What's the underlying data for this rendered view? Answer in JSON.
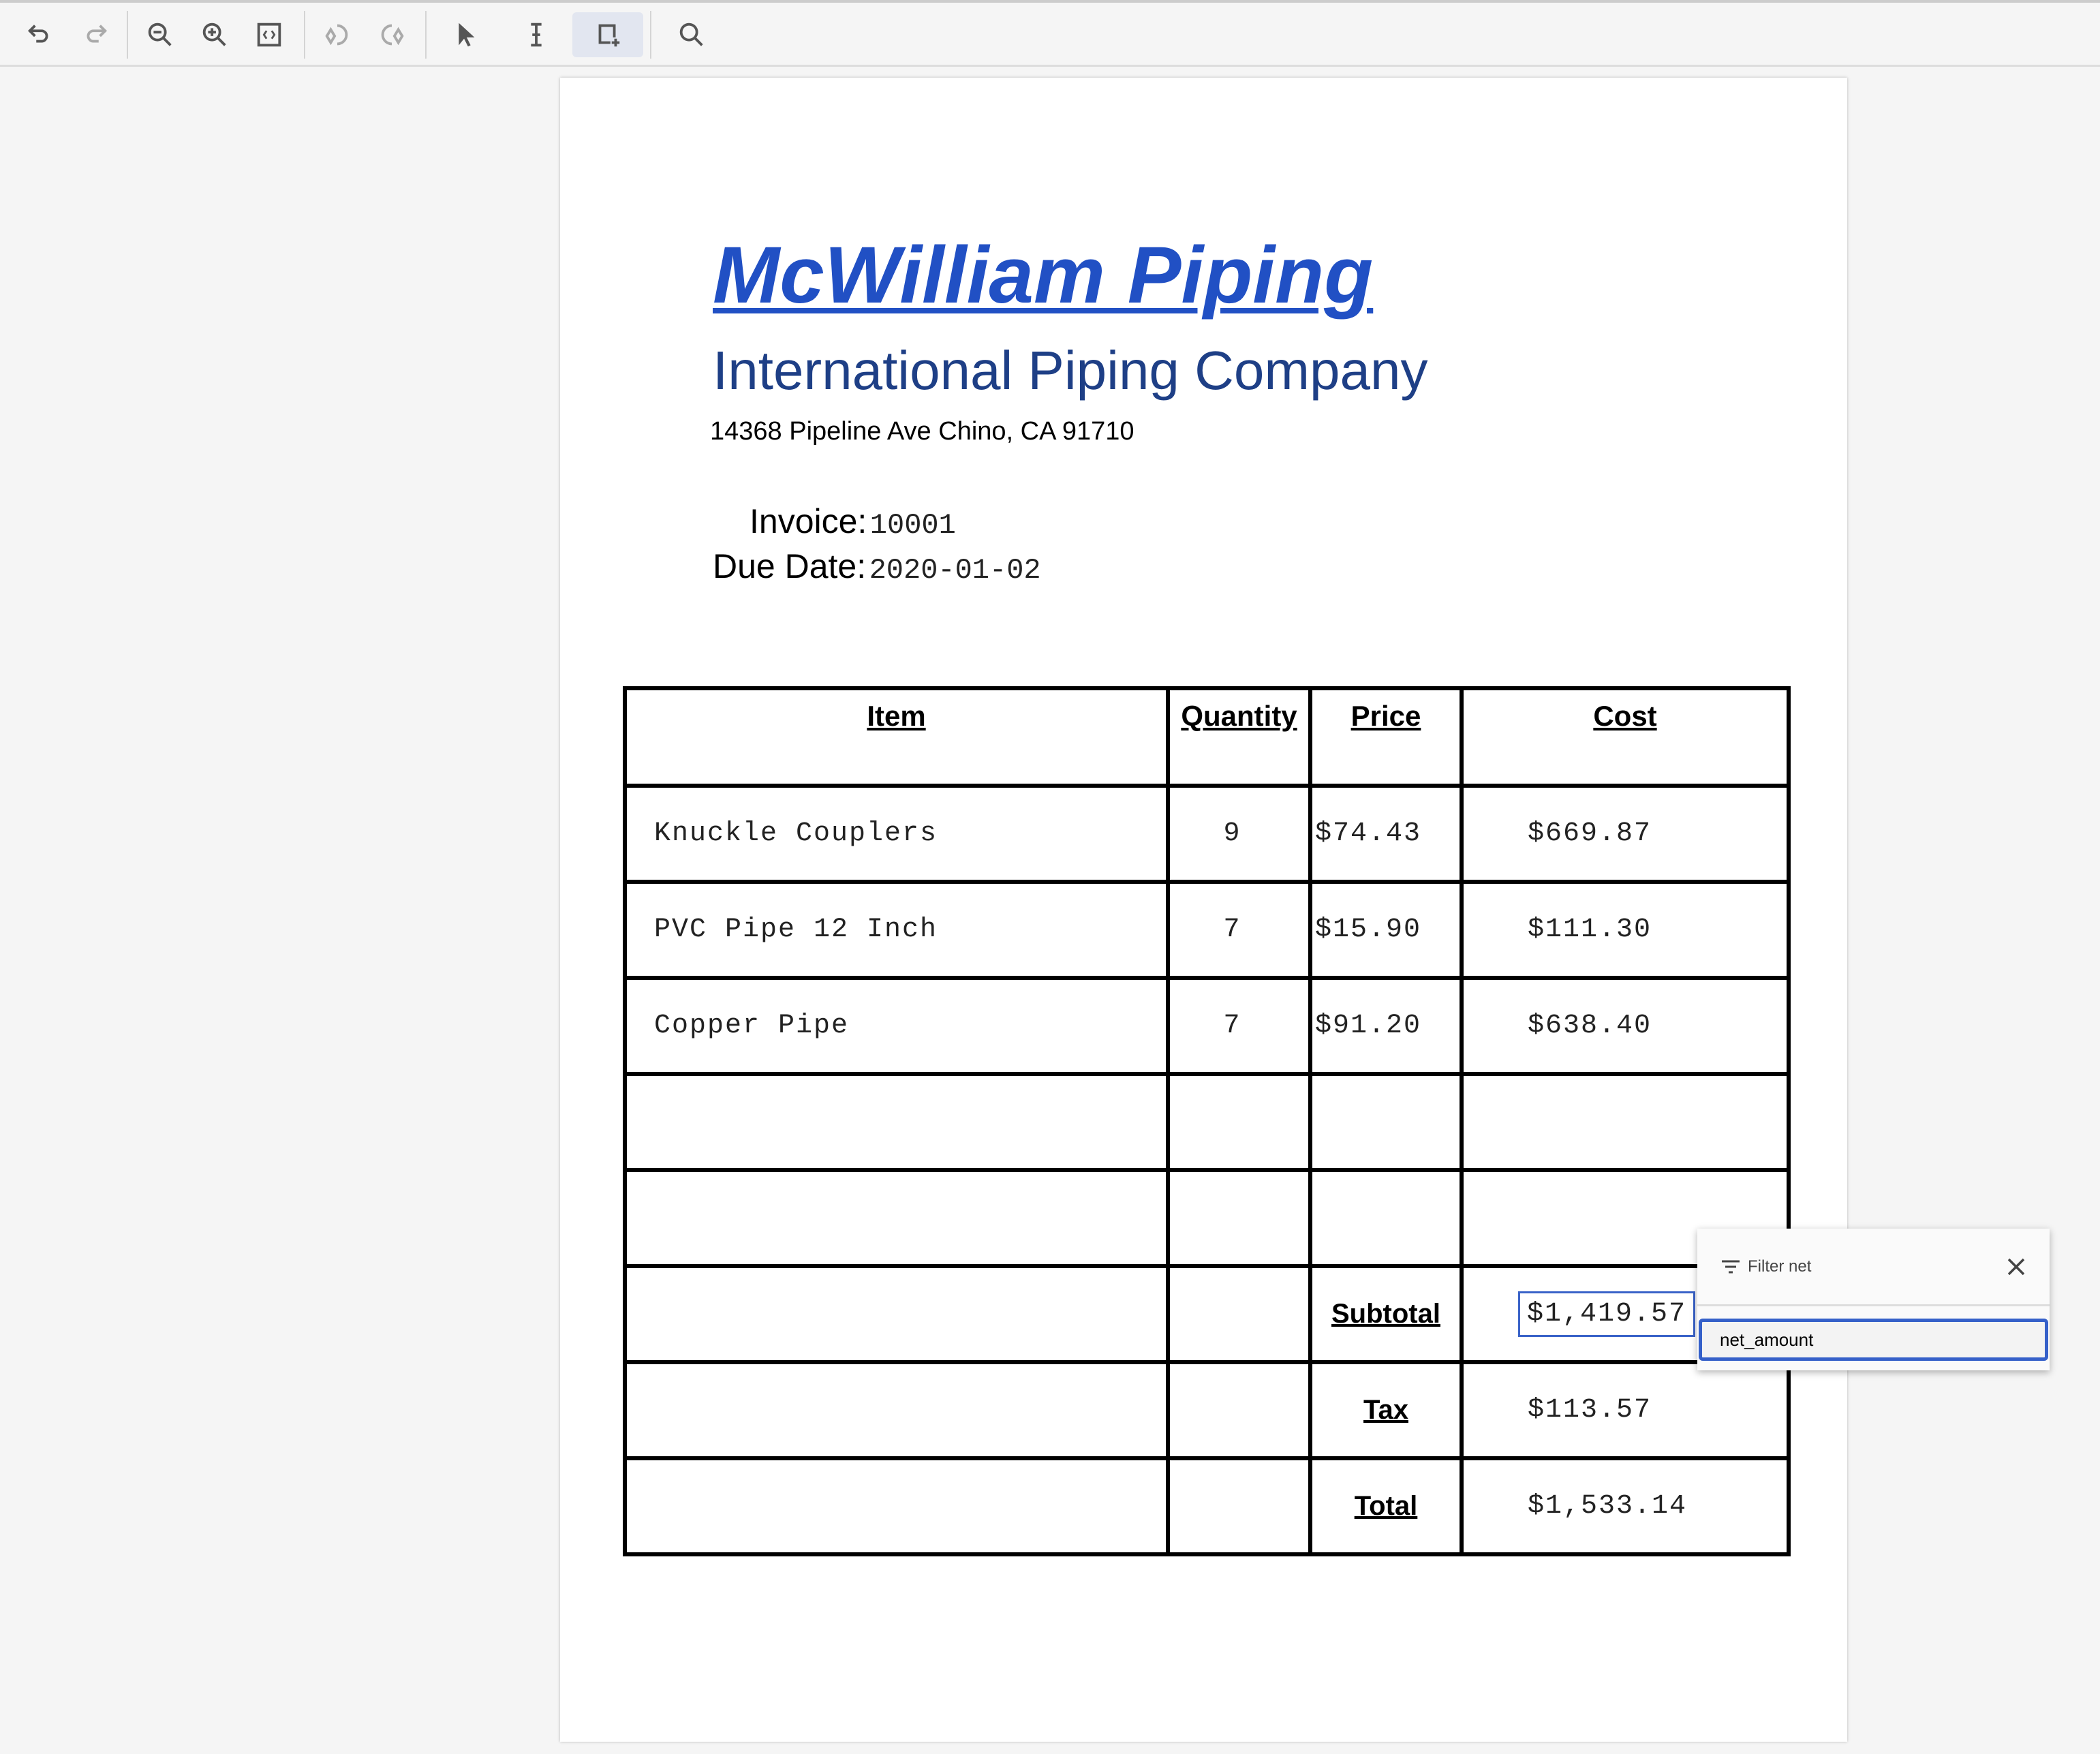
{
  "toolbar": {
    "icons": [
      "undo-icon",
      "redo-icon",
      "zoom-out-icon",
      "zoom-in-icon",
      "fit-page-icon",
      "rotate-left-icon",
      "rotate-right-icon",
      "pointer-icon",
      "text-cursor-icon",
      "add-region-icon",
      "search-icon"
    ],
    "active": "add-region-icon"
  },
  "document": {
    "company": "McWilliam Piping",
    "subtitle": "International Piping Company",
    "address": "14368 Pipeline Ave Chino, CA 91710",
    "invoice_label": "Invoice:",
    "invoice_value": "10001",
    "due_label": "Due Date:",
    "due_value": "2020-01-02",
    "headers": [
      "Item",
      "Quantity",
      "Price",
      "Cost"
    ],
    "rows": [
      {
        "item": "Knuckle Couplers",
        "qty": "9",
        "price": "$74.43",
        "cost": "$669.87"
      },
      {
        "item": "PVC Pipe 12 Inch",
        "qty": "7",
        "price": "$15.90",
        "cost": "$111.30"
      },
      {
        "item": "Copper Pipe",
        "qty": "7",
        "price": "$91.20",
        "cost": "$638.40"
      }
    ],
    "subtotal_label": "Subtotal",
    "subtotal": "$1,419.57",
    "tax_label": "Tax",
    "tax": "$113.57",
    "total_label": "Total",
    "total": "$1,533.14"
  },
  "filter_popup": {
    "title": "Filter net",
    "value": "net_amount"
  },
  "colors": {
    "title": "#2150c4",
    "subtitle": "#1e3f86",
    "accent": "#3560c9"
  }
}
